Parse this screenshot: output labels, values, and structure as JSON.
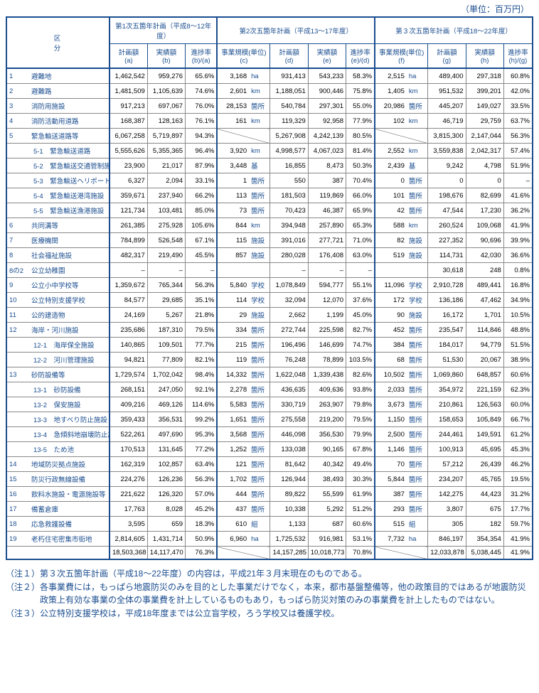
{
  "unit_text": "（単位：百万円）",
  "blue": "#1a4d8f",
  "text_color": "#000000",
  "grid_color": "#888888",
  "font_size_pt": 9.5,
  "header": {
    "kubun": "区　　　分",
    "plans": [
      {
        "title": "第1次五箇年計画（平成8～12年度）",
        "cols": [
          {
            "t": "計画額",
            "s": "(a)"
          },
          {
            "t": "実績額",
            "s": "(b)"
          },
          {
            "t": "進捗率",
            "s": "(b)/(a)"
          }
        ]
      },
      {
        "title": "第2次五箇年計画（平成13～17年度）",
        "cols": [
          {
            "t": "事業規模(単位)",
            "s": "(c)"
          },
          {
            "t": "計画額",
            "s": "(d)"
          },
          {
            "t": "実績額",
            "s": "(e)"
          },
          {
            "t": "進捗率",
            "s": "(e)/(d)"
          }
        ]
      },
      {
        "title": "第３次五箇年計画（平成18～22年度）",
        "cols": [
          {
            "t": "事業規模(単位)",
            "s": "(f)"
          },
          {
            "t": "計画額",
            "s": "(g)"
          },
          {
            "t": "実績額",
            "s": "(h)"
          },
          {
            "t": "進捗率",
            "s": "(h)/(g)"
          }
        ]
      }
    ]
  },
  "rows": [
    {
      "no": "1",
      "name": "避難地",
      "a": "1,462,542",
      "b": "959,276",
      "ba": "65.6%",
      "c": "3,168",
      "cu": "ha",
      "d": "931,413",
      "e": "543,233",
      "ed": "58.3%",
      "f": "2,515",
      "fu": "ha",
      "g": "489,400",
      "h": "297,318",
      "hg": "60.8%"
    },
    {
      "no": "2",
      "name": "避難路",
      "a": "1,481,509",
      "b": "1,105,639",
      "ba": "74.6%",
      "c": "2,601",
      "cu": "km",
      "d": "1,188,051",
      "e": "900,446",
      "ed": "75.8%",
      "f": "1,405",
      "fu": "km",
      "g": "951,532",
      "h": "399,201",
      "hg": "42.0%"
    },
    {
      "no": "3",
      "name": "消防用施設",
      "a": "917,213",
      "b": "697,067",
      "ba": "76.0%",
      "c": "28,153",
      "cu": "箇所",
      "d": "540,784",
      "e": "297,301",
      "ed": "55.0%",
      "f": "20,986",
      "fu": "箇所",
      "g": "445,207",
      "h": "149,027",
      "hg": "33.5%"
    },
    {
      "no": "4",
      "name": "消防活動用道路",
      "a": "168,387",
      "b": "128,163",
      "ba": "76.1%",
      "c": "161",
      "cu": "km",
      "d": "119,329",
      "e": "92,958",
      "ed": "77.9%",
      "f": "102",
      "fu": "km",
      "g": "46,719",
      "h": "29,759",
      "hg": "63.7%"
    },
    {
      "no": "5",
      "name": "緊急輸送道路等",
      "a": "6,067,258",
      "b": "5,719,897",
      "ba": "94.3%",
      "slashC": true,
      "d": "5,267,908",
      "e": "4,242,139",
      "ed": "80.5%",
      "slashF": true,
      "g": "3,815,300",
      "h": "2,147,044",
      "hg": "56.3%"
    },
    {
      "sub": "5-1",
      "name": "緊急輸送道路",
      "a": "5,555,626",
      "b": "5,355,365",
      "ba": "96.4%",
      "c": "3,920",
      "cu": "km",
      "d": "4,998,577",
      "e": "4,067,023",
      "ed": "81.4%",
      "f": "2,552",
      "fu": "km",
      "g": "3,559,838",
      "h": "2,042,317",
      "hg": "57.4%"
    },
    {
      "sub": "5-2",
      "name": "緊急輸送交通管制施設",
      "a": "23,900",
      "b": "21,017",
      "ba": "87.9%",
      "c": "3,448",
      "cu": "基",
      "d": "16,855",
      "e": "8,473",
      "ed": "50.3%",
      "f": "2,439",
      "fu": "基",
      "g": "9,242",
      "h": "4,798",
      "hg": "51.9%"
    },
    {
      "sub": "5-3",
      "name": "緊急輸送ヘリポート",
      "a": "6,327",
      "b": "2,094",
      "ba": "33.1%",
      "c": "1",
      "cu": "箇所",
      "d": "550",
      "e": "387",
      "ed": "70.4%",
      "f": "0",
      "fu": "箇所",
      "g": "0",
      "h": "0",
      "hg": "–"
    },
    {
      "sub": "5-4",
      "name": "緊急輸送港湾施設",
      "a": "359,671",
      "b": "237,940",
      "ba": "66.2%",
      "c": "113",
      "cu": "箇所",
      "d": "181,503",
      "e": "119,869",
      "ed": "66.0%",
      "f": "101",
      "fu": "箇所",
      "g": "198,676",
      "h": "82,699",
      "hg": "41.6%"
    },
    {
      "sub": "5-5",
      "name": "緊急輸送漁港施設",
      "a": "121,734",
      "b": "103,481",
      "ba": "85.0%",
      "c": "73",
      "cu": "箇所",
      "d": "70,423",
      "e": "46,387",
      "ed": "65.9%",
      "f": "42",
      "fu": "箇所",
      "g": "47,544",
      "h": "17,230",
      "hg": "36.2%"
    },
    {
      "no": "6",
      "name": "共同溝等",
      "a": "261,385",
      "b": "275,928",
      "ba": "105.6%",
      "c": "844",
      "cu": "km",
      "d": "394,948",
      "e": "257,890",
      "ed": "65.3%",
      "f": "588",
      "fu": "km",
      "g": "260,524",
      "h": "109,068",
      "hg": "41.9%"
    },
    {
      "no": "7",
      "name": "医療機関",
      "a": "784,899",
      "b": "526,548",
      "ba": "67.1%",
      "c": "115",
      "cu": "施設",
      "d": "391,016",
      "e": "277,721",
      "ed": "71.0%",
      "f": "82",
      "fu": "施設",
      "g": "227,352",
      "h": "90,696",
      "hg": "39.9%"
    },
    {
      "no": "8",
      "name": "社会福祉施設",
      "a": "482,317",
      "b": "219,490",
      "ba": "45.5%",
      "c": "857",
      "cu": "施設",
      "d": "280,028",
      "e": "176,408",
      "ed": "63.0%",
      "f": "519",
      "fu": "施設",
      "g": "114,731",
      "h": "42,030",
      "hg": "36.6%"
    },
    {
      "no": "8の2",
      "name": "公立幼稚園",
      "a": "–",
      "b": "–",
      "ba": "–",
      "c": "",
      "cu": "",
      "d": "–",
      "e": "–",
      "ed": "–",
      "f": "",
      "fu": "",
      "g": "30,618",
      "h": "248",
      "hg": "0.8%"
    },
    {
      "no": "9",
      "name": "公立小中学校等",
      "a": "1,359,672",
      "b": "765,344",
      "ba": "56.3%",
      "c": "5,840",
      "cu": "学校",
      "d": "1,078,849",
      "e": "594,777",
      "ed": "55.1%",
      "f": "11,096",
      "fu": "学校",
      "g": "2,910,728",
      "h": "489,441",
      "hg": "16.8%"
    },
    {
      "no": "10",
      "name": "公立特別支援学校",
      "a": "84,577",
      "b": "29,685",
      "ba": "35.1%",
      "c": "114",
      "cu": "学校",
      "d": "32,094",
      "e": "12,070",
      "ed": "37.6%",
      "f": "172",
      "fu": "学校",
      "g": "136,186",
      "h": "47,462",
      "hg": "34.9%"
    },
    {
      "no": "11",
      "name": "公的建造物",
      "a": "24,169",
      "b": "5,267",
      "ba": "21.8%",
      "c": "29",
      "cu": "施設",
      "d": "2,662",
      "e": "1,199",
      "ed": "45.0%",
      "f": "90",
      "fu": "施設",
      "g": "16,172",
      "h": "1,701",
      "hg": "10.5%"
    },
    {
      "no": "12",
      "name": "海岸・河川施設",
      "a": "235,686",
      "b": "187,310",
      "ba": "79.5%",
      "c": "334",
      "cu": "箇所",
      "d": "272,744",
      "e": "225,598",
      "ed": "82.7%",
      "f": "452",
      "fu": "箇所",
      "g": "235,547",
      "h": "114,846",
      "hg": "48.8%"
    },
    {
      "sub": "12-1",
      "name": "海岸保全施設",
      "a": "140,865",
      "b": "109,501",
      "ba": "77.7%",
      "c": "215",
      "cu": "箇所",
      "d": "196,496",
      "e": "146,699",
      "ed": "74.7%",
      "f": "384",
      "fu": "箇所",
      "g": "184,017",
      "h": "94,779",
      "hg": "51.5%"
    },
    {
      "sub": "12-2",
      "name": "河川管理施設",
      "a": "94,821",
      "b": "77,809",
      "ba": "82.1%",
      "c": "119",
      "cu": "箇所",
      "d": "76,248",
      "e": "78,899",
      "ed": "103.5%",
      "f": "68",
      "fu": "箇所",
      "g": "51,530",
      "h": "20,067",
      "hg": "38.9%"
    },
    {
      "no": "13",
      "name": "砂防設備等",
      "a": "1,729,574",
      "b": "1,702,042",
      "ba": "98.4%",
      "c": "14,332",
      "cu": "箇所",
      "d": "1,622,048",
      "e": "1,339,438",
      "ed": "82.6%",
      "f": "10,502",
      "fu": "箇所",
      "g": "1,069,860",
      "h": "648,857",
      "hg": "60.6%"
    },
    {
      "sub": "13-1",
      "name": "砂防設備",
      "a": "268,151",
      "b": "247,050",
      "ba": "92.1%",
      "c": "2,278",
      "cu": "箇所",
      "d": "436,635",
      "e": "409,636",
      "ed": "93.8%",
      "f": "2,033",
      "fu": "箇所",
      "g": "354,972",
      "h": "221,159",
      "hg": "62.3%"
    },
    {
      "sub": "13-2",
      "name": "保安施設",
      "a": "409,216",
      "b": "469,126",
      "ba": "114.6%",
      "c": "5,583",
      "cu": "箇所",
      "d": "330,719",
      "e": "263,907",
      "ed": "79.8%",
      "f": "3,673",
      "fu": "箇所",
      "g": "210,861",
      "h": "126,563",
      "hg": "60.0%"
    },
    {
      "sub": "13-3",
      "name": "地すべり防止施設",
      "a": "359,433",
      "b": "356,531",
      "ba": "99.2%",
      "c": "1,651",
      "cu": "箇所",
      "d": "275,558",
      "e": "219,200",
      "ed": "79.5%",
      "f": "1,150",
      "fu": "箇所",
      "g": "158,653",
      "h": "105,849",
      "hg": "66.7%"
    },
    {
      "sub": "13-4",
      "name": "急傾斜地崩壊防止施設",
      "a": "522,261",
      "b": "497,690",
      "ba": "95.3%",
      "c": "3,568",
      "cu": "箇所",
      "d": "446,098",
      "e": "356,530",
      "ed": "79.9%",
      "f": "2,500",
      "fu": "箇所",
      "g": "244,461",
      "h": "149,591",
      "hg": "61.2%"
    },
    {
      "sub": "13-5",
      "name": "ため池",
      "a": "170,513",
      "b": "131,645",
      "ba": "77.2%",
      "c": "1,252",
      "cu": "箇所",
      "d": "133,038",
      "e": "90,165",
      "ed": "67.8%",
      "f": "1,146",
      "fu": "箇所",
      "g": "100,913",
      "h": "45,695",
      "hg": "45.3%"
    },
    {
      "no": "14",
      "name": "地域防災拠点施設",
      "a": "162,319",
      "b": "102,857",
      "ba": "63.4%",
      "c": "121",
      "cu": "箇所",
      "d": "81,642",
      "e": "40,342",
      "ed": "49.4%",
      "f": "70",
      "fu": "箇所",
      "g": "57,212",
      "h": "26,439",
      "hg": "46.2%"
    },
    {
      "no": "15",
      "name": "防災行政無線設備",
      "a": "224,276",
      "b": "126,236",
      "ba": "56.3%",
      "c": "1,702",
      "cu": "箇所",
      "d": "126,944",
      "e": "38,493",
      "ed": "30.3%",
      "f": "5,844",
      "fu": "箇所",
      "g": "234,207",
      "h": "45,765",
      "hg": "19.5%"
    },
    {
      "no": "16",
      "name": "飲料水施設・電源施設等",
      "a": "221,622",
      "b": "126,320",
      "ba": "57.0%",
      "c": "444",
      "cu": "箇所",
      "d": "89,822",
      "e": "55,599",
      "ed": "61.9%",
      "f": "387",
      "fu": "箇所",
      "g": "142,275",
      "h": "44,423",
      "hg": "31.2%"
    },
    {
      "no": "17",
      "name": "備蓄倉庫",
      "a": "17,763",
      "b": "8,028",
      "ba": "45.2%",
      "c": "437",
      "cu": "箇所",
      "d": "10,338",
      "e": "5,292",
      "ed": "51.2%",
      "f": "293",
      "fu": "箇所",
      "g": "3,807",
      "h": "675",
      "hg": "17.7%"
    },
    {
      "no": "18",
      "name": "応急救護設備",
      "a": "3,595",
      "b": "659",
      "ba": "18.3%",
      "c": "610",
      "cu": "組",
      "d": "1,133",
      "e": "687",
      "ed": "60.6%",
      "f": "515",
      "fu": "組",
      "g": "305",
      "h": "182",
      "hg": "59.7%"
    },
    {
      "no": "19",
      "name": "老朽住宅密集市街地",
      "a": "2,814,605",
      "b": "1,431,714",
      "ba": "50.9%",
      "c": "6,960",
      "cu": "ha",
      "d": "1,725,532",
      "e": "916,981",
      "ed": "53.1%",
      "f": "7,732",
      "fu": "ha",
      "g": "846,197",
      "h": "354,354",
      "hg": "41.9%"
    },
    {
      "total": true,
      "name": "",
      "a": "18,503,368",
      "b": "14,117,470",
      "ba": "76.3%",
      "slashC": true,
      "d": "14,157,285",
      "e": "10,018,773",
      "ed": "70.8%",
      "slashF": true,
      "g": "12,033,878",
      "h": "5,038,445",
      "hg": "41.9%"
    }
  ],
  "notes": [
    "（注１）第３次五箇年計画（平成18～22年度）の内容は，平成21年３月末現在のものである。",
    "（注２）各事業費には，もっぱら地震防災のみを目的とした事業だけでなく，本来，都市基盤整備等，他の政策目的ではあるが地震防災政策上有効な事業の全体の事業費を計上しているものもあり，もっぱら防災対策のみの事業費を計上したものではない。",
    "（注３）公立特別支援学校は，平成18年度までは公立盲学校，ろう学校又は養護学校。"
  ]
}
